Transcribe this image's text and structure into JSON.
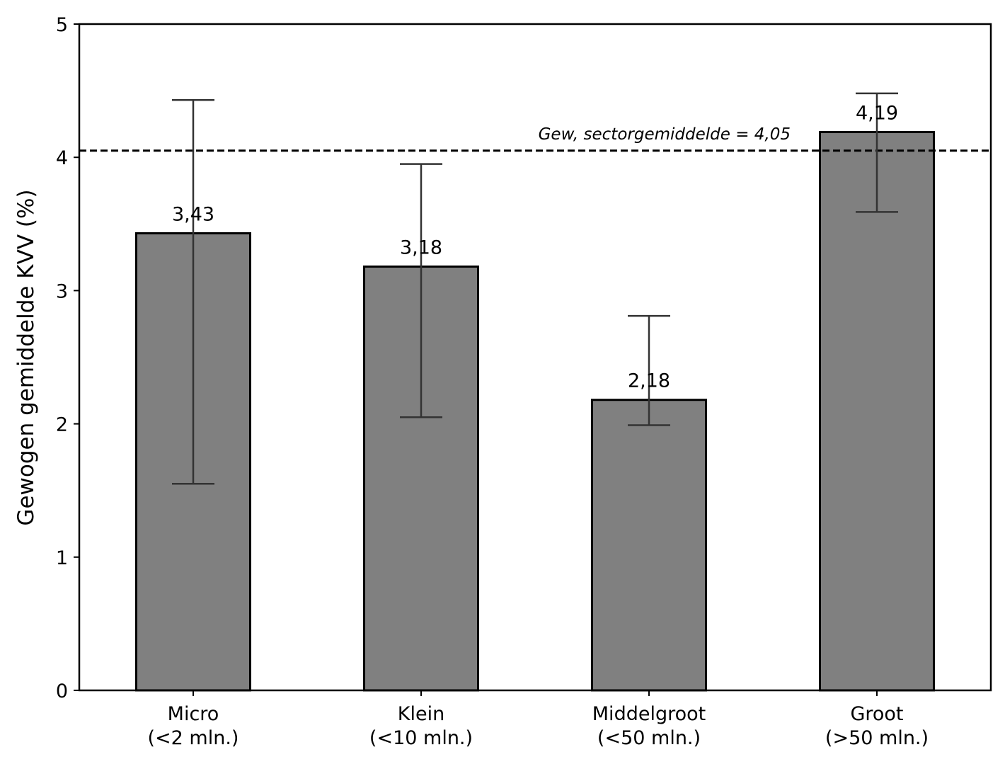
{
  "chart_data": {
    "type": "bar",
    "title": "",
    "xlabel": "",
    "ylabel": "Gewogen gemiddelde KVV (%)",
    "ylim": [
      0,
      5
    ],
    "yticks": [
      "0",
      "1",
      "2",
      "3",
      "4",
      "5"
    ],
    "grid": false,
    "categories": [
      [
        "Micro",
        "(<2 mln.)"
      ],
      [
        "Klein",
        "(<10 mln.)"
      ],
      [
        "Middelgroot",
        "(<50 mln.)"
      ],
      [
        "Groot",
        "(>50 mln.)"
      ]
    ],
    "values": [
      3.43,
      3.18,
      2.18,
      4.19
    ],
    "value_labels": [
      "3,43",
      "3,18",
      "2,18",
      "4,19"
    ],
    "error_low": [
      1.55,
      2.05,
      1.99,
      3.59
    ],
    "error_high": [
      4.43,
      3.95,
      2.81,
      4.48
    ],
    "bar_color": "#808080",
    "reference_line": {
      "value": 4.05,
      "label": "Gew, sectorgemiddelde = 4,05",
      "style": "dashed",
      "color": "#000000"
    }
  }
}
